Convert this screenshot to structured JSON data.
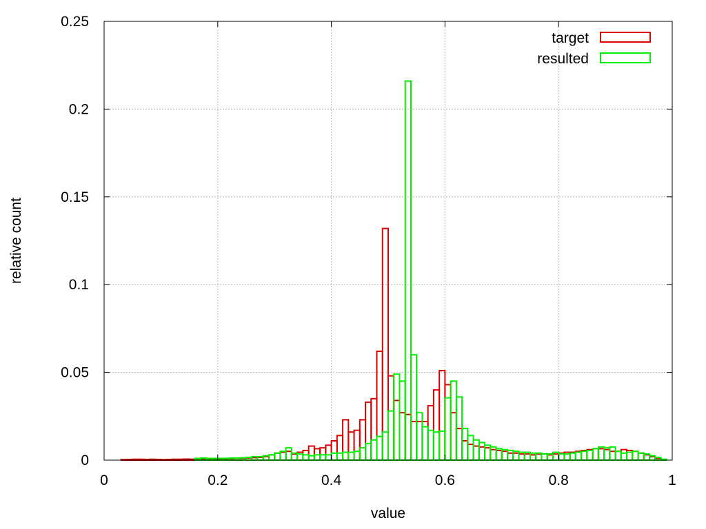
{
  "chart_data": {
    "type": "bar",
    "subtype": "step-histogram",
    "xlabel": "value",
    "ylabel": "relative count",
    "xlim": [
      0,
      1
    ],
    "ylim": [
      0,
      0.25
    ],
    "xticks": [
      "0",
      "0.2",
      "0.4",
      "0.6",
      "0.8",
      "1"
    ],
    "yticks": [
      "0",
      "0.05",
      "0.1",
      "0.15",
      "0.2",
      "0.25"
    ],
    "grid": true,
    "legend_position": "top-right",
    "bin_width": 0.01,
    "bin_starts": [
      0,
      0.01,
      0.02,
      0.03,
      0.04,
      0.05,
      0.06,
      0.07,
      0.08,
      0.09,
      0.1,
      0.11,
      0.12,
      0.13,
      0.14,
      0.15,
      0.16,
      0.17,
      0.18,
      0.19,
      0.2,
      0.21,
      0.22,
      0.23,
      0.24,
      0.25,
      0.26,
      0.27,
      0.28,
      0.29,
      0.3,
      0.31,
      0.32,
      0.33,
      0.34,
      0.35,
      0.36,
      0.37,
      0.38,
      0.39,
      0.4,
      0.41,
      0.42,
      0.43,
      0.44,
      0.45,
      0.46,
      0.47,
      0.48,
      0.49,
      0.5,
      0.51,
      0.52,
      0.53,
      0.54,
      0.55,
      0.56,
      0.57,
      0.58,
      0.59,
      0.6,
      0.61,
      0.62,
      0.63,
      0.64,
      0.65,
      0.66,
      0.67,
      0.68,
      0.69,
      0.7,
      0.71,
      0.72,
      0.73,
      0.74,
      0.75,
      0.76,
      0.77,
      0.78,
      0.79,
      0.8,
      0.81,
      0.82,
      0.83,
      0.84,
      0.85,
      0.86,
      0.87,
      0.88,
      0.89,
      0.9,
      0.91,
      0.92,
      0.93,
      0.94,
      0.95,
      0.96,
      0.97,
      0.98,
      0.99
    ],
    "series": [
      {
        "name": "target",
        "color": "#dd0000",
        "values": [
          0,
          0,
          0,
          0.0003,
          0.0004,
          0.0005,
          0.0005,
          0.0004,
          0.0005,
          0.0004,
          0.0003,
          0.0004,
          0.0005,
          0.0005,
          0.0006,
          0.0005,
          0.0006,
          0.0006,
          0.0007,
          0.0007,
          0.0008,
          0.0008,
          0.0009,
          0.001,
          0.001,
          0.0012,
          0.0014,
          0.0016,
          0.002,
          0.003,
          0.004,
          0.0045,
          0.005,
          0.0035,
          0.0045,
          0.0055,
          0.008,
          0.0065,
          0.007,
          0.0085,
          0.011,
          0.014,
          0.023,
          0.016,
          0.017,
          0.023,
          0.033,
          0.035,
          0.062,
          0.132,
          0.048,
          0.034,
          0.027,
          0.026,
          0.022,
          0.022,
          0.022,
          0.031,
          0.04,
          0.051,
          0.043,
          0.027,
          0.018,
          0.011,
          0.009,
          0.008,
          0.0075,
          0.007,
          0.006,
          0.0055,
          0.005,
          0.004,
          0.004,
          0.0035,
          0.0035,
          0.003,
          0.0035,
          0.0035,
          0.003,
          0.0035,
          0.004,
          0.0045,
          0.0045,
          0.005,
          0.0055,
          0.006,
          0.0065,
          0.0065,
          0.006,
          0.005,
          0.005,
          0.006,
          0.0055,
          0.005,
          0.004,
          0.003,
          0.002,
          0.001,
          0,
          0
        ]
      },
      {
        "name": "resulted",
        "color": "#00ee00",
        "values": [
          0,
          0,
          0,
          0,
          0,
          0,
          0,
          0,
          0,
          0,
          0,
          0,
          0,
          0,
          0,
          0,
          0.001,
          0.0012,
          0.001,
          0.001,
          0.001,
          0.001,
          0.0012,
          0.0012,
          0.0013,
          0.0015,
          0.002,
          0.002,
          0.0025,
          0.003,
          0.004,
          0.005,
          0.007,
          0.004,
          0.0035,
          0.003,
          0.0025,
          0.003,
          0.003,
          0.003,
          0.004,
          0.004,
          0.0045,
          0.0045,
          0.005,
          0.007,
          0.0095,
          0.0115,
          0.0135,
          0.016,
          0.028,
          0.049,
          0.045,
          0.216,
          0.06,
          0.027,
          0.019,
          0.017,
          0.016,
          0.0165,
          0.0355,
          0.045,
          0.036,
          0.018,
          0.014,
          0.0115,
          0.01,
          0.0085,
          0.0075,
          0.0065,
          0.006,
          0.0055,
          0.005,
          0.0045,
          0.0045,
          0.004,
          0.004,
          0.0035,
          0.0035,
          0.0045,
          0.0035,
          0.0035,
          0.004,
          0.0045,
          0.005,
          0.0055,
          0.0065,
          0.0075,
          0.007,
          0.0075,
          0.005,
          0.004,
          0.0045,
          0.005,
          0.004,
          0.0035,
          0.0025,
          0.0015,
          0.0005,
          0
        ]
      }
    ]
  }
}
